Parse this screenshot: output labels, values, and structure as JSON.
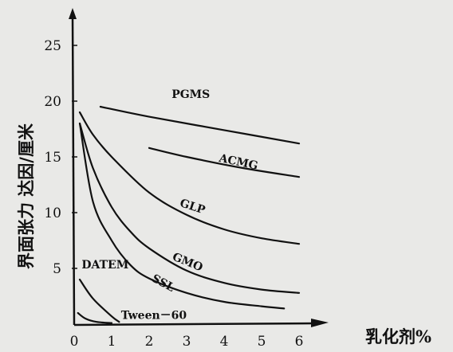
{
  "chart_data": {
    "type": "line",
    "title": "",
    "xlabel": "乳化剂%",
    "ylabel": "界面张力 达因/厘米",
    "xlim": [
      0,
      6.5
    ],
    "ylim": [
      0,
      27
    ],
    "x_ticks": [
      "0",
      "1",
      "2",
      "3",
      "4",
      "5",
      "6"
    ],
    "y_ticks": [
      "5",
      "10",
      "15",
      "20",
      "25"
    ],
    "grid": false,
    "legend": "none",
    "series": [
      {
        "name": "PGMS",
        "x": [
          0.7,
          2.0,
          4.0,
          6.0
        ],
        "y": [
          19.5,
          18.6,
          17.4,
          16.2
        ]
      },
      {
        "name": "ACMG",
        "x": [
          2.0,
          3.0,
          4.5,
          6.0
        ],
        "y": [
          15.8,
          15.0,
          14.0,
          13.2
        ]
      },
      {
        "name": "GLP",
        "x": [
          0.15,
          0.5,
          1.0,
          2.0,
          3.0,
          4.0,
          5.0,
          6.0
        ],
        "y": [
          19.0,
          17.0,
          15.0,
          11.8,
          9.8,
          8.5,
          7.7,
          7.2
        ]
      },
      {
        "name": "GMO",
        "x": [
          0.15,
          0.5,
          1.0,
          1.5,
          2.0,
          3.0,
          4.0,
          5.0,
          6.0
        ],
        "y": [
          18.0,
          14.0,
          10.5,
          8.3,
          6.8,
          4.8,
          3.7,
          3.1,
          2.8
        ]
      },
      {
        "name": "SSL",
        "x": [
          0.15,
          0.5,
          1.0,
          1.5,
          2.0,
          3.0,
          4.0,
          5.0,
          5.6
        ],
        "y": [
          18.0,
          11.0,
          7.5,
          5.3,
          4.1,
          2.8,
          2.0,
          1.6,
          1.4
        ]
      },
      {
        "name": "DATEM",
        "x": [
          0.15,
          0.5,
          1.0,
          1.2
        ],
        "y": [
          4.0,
          2.3,
          0.7,
          0.2
        ]
      },
      {
        "name": "Tween－60",
        "x": [
          0.1,
          0.3,
          0.6,
          1.0
        ],
        "y": [
          1.0,
          0.5,
          0.2,
          0.1
        ]
      }
    ]
  }
}
